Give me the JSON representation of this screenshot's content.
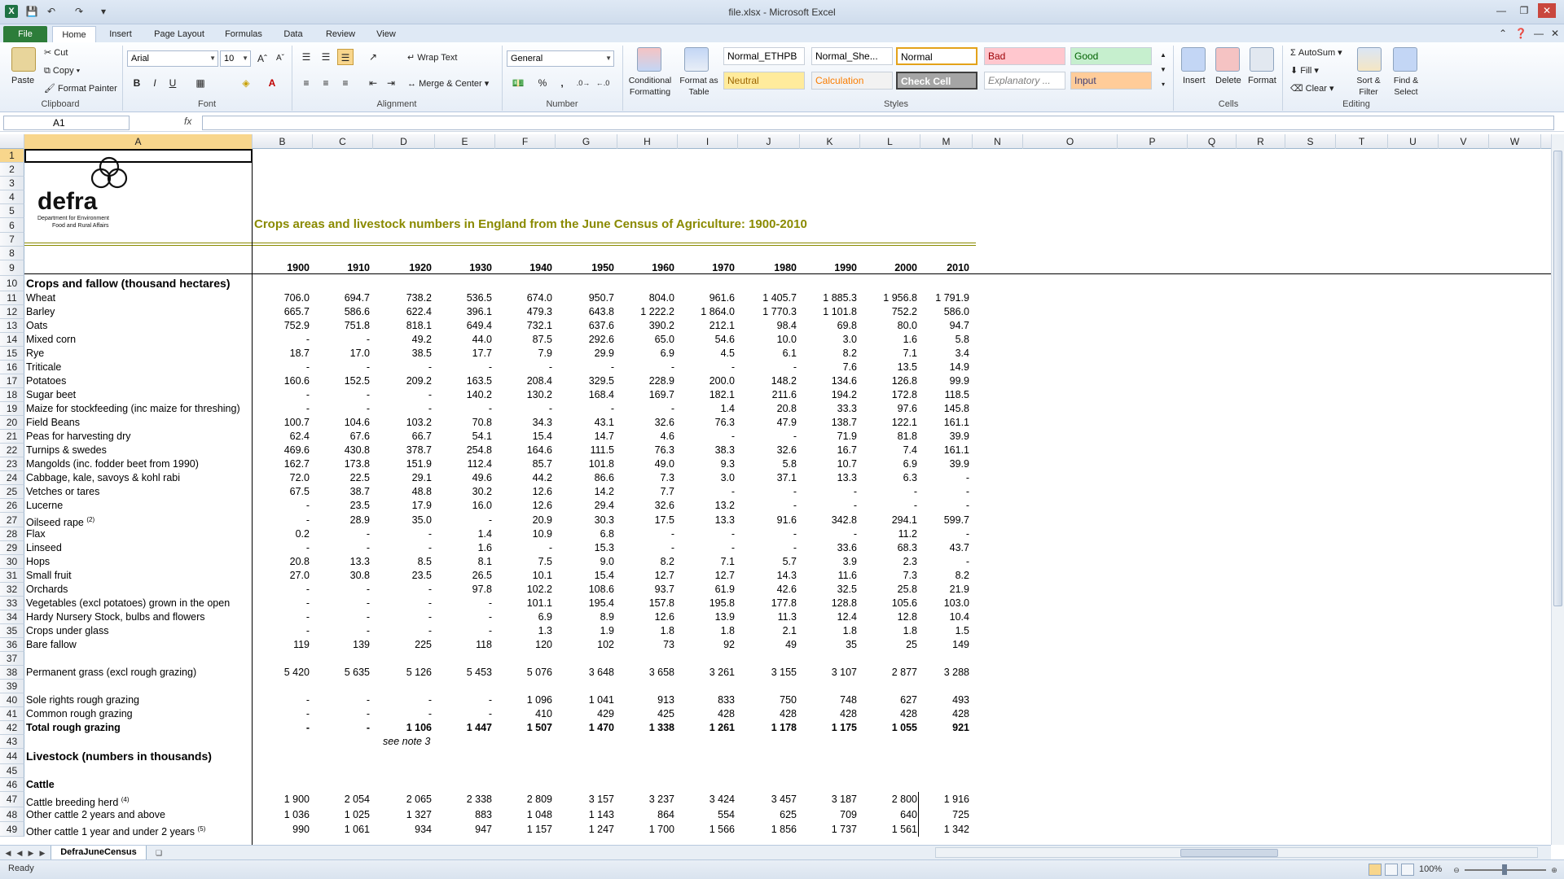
{
  "window": {
    "title": "file.xlsx  -  Microsoft Excel",
    "app_icon": "X"
  },
  "tabs": [
    "File",
    "Home",
    "Insert",
    "Page Layout",
    "Formulas",
    "Data",
    "Review",
    "View"
  ],
  "ribbon": {
    "clipboard": {
      "paste": "Paste",
      "cut": "Cut",
      "copy": "Copy",
      "format_painter": "Format Painter",
      "label": "Clipboard"
    },
    "font": {
      "name": "Arial",
      "size": "10",
      "bold": "B",
      "italic": "I",
      "underline": "U",
      "label": "Font"
    },
    "alignment": {
      "wrap": "Wrap Text",
      "merge": "Merge & Center",
      "label": "Alignment"
    },
    "number": {
      "format": "General",
      "percent": "%",
      "comma": ",",
      "label": "Number"
    },
    "styles_buttons": {
      "conditional": "Conditional Formatting",
      "format_table": "Format as Table"
    },
    "styles": [
      {
        "text": "Normal_ETHPB",
        "bg": "#ffffff",
        "color": "#000000"
      },
      {
        "text": "Normal_She...",
        "bg": "#ffffff",
        "color": "#000000"
      },
      {
        "text": "Normal",
        "bg": "#ffffff",
        "color": "#000000"
      },
      {
        "text": "Bad",
        "bg": "#ffc7ce",
        "color": "#9c0006"
      },
      {
        "text": "Good",
        "bg": "#c6efce",
        "color": "#006100"
      },
      {
        "text": "Neutral",
        "bg": "#ffeb9c",
        "color": "#9c6500"
      },
      {
        "text": "Calculation",
        "bg": "#f2f2f2",
        "color": "#fa7d00"
      },
      {
        "text": "Check Cell",
        "bg": "#a5a5a5",
        "color": "#ffffff"
      },
      {
        "text": "Explanatory ...",
        "bg": "#ffffff",
        "color": "#7f7f7f"
      },
      {
        "text": "Input",
        "bg": "#ffcc99",
        "color": "#3f3f76"
      }
    ],
    "styles_label": "Styles",
    "cells": {
      "insert": "Insert",
      "delete": "Delete",
      "format": "Format",
      "label": "Cells"
    },
    "editing": {
      "autosum": "AutoSum",
      "fill": "Fill",
      "clear": "Clear",
      "sort": "Sort & Filter",
      "find": "Find & Select",
      "label": "Editing"
    }
  },
  "formula_bar": {
    "name_box": "A1",
    "fx": "fx",
    "value": ""
  },
  "columns": [
    "A",
    "B",
    "C",
    "D",
    "E",
    "F",
    "G",
    "H",
    "I",
    "J",
    "K",
    "L",
    "M",
    "N",
    "O",
    "P",
    "Q",
    "R",
    "S",
    "T",
    "U",
    "V",
    "W"
  ],
  "rows": [
    "1",
    "2",
    "3",
    "4",
    "5",
    "6",
    "7",
    "8",
    "9",
    "10",
    "11",
    "12",
    "13",
    "14",
    "15",
    "16",
    "17",
    "18",
    "19",
    "20",
    "21",
    "22",
    "23",
    "24",
    "25",
    "26",
    "27",
    "28",
    "29",
    "30",
    "31",
    "32",
    "33",
    "34",
    "35",
    "36",
    "37",
    "38",
    "39",
    "40",
    "41",
    "42",
    "43",
    "44",
    "45",
    "46",
    "47",
    "48",
    "49"
  ],
  "logo": {
    "name": "defra",
    "line1": "Department for Environment",
    "line2": "Food and Rural Affairs"
  },
  "sheet": {
    "title": "Crops areas and livestock numbers in England from the June Census of Agriculture: 1900-2010",
    "years": [
      "1900",
      "1910",
      "1920",
      "1930",
      "1940",
      "1950",
      "1960",
      "1970",
      "1980",
      "1990",
      "2000",
      "2010"
    ],
    "crops_heading": "Crops and fallow (thousand hectares)",
    "crops": [
      {
        "row": 11,
        "label": "Wheat",
        "v": [
          "706.0",
          "694.7",
          "738.2",
          "536.5",
          "674.0",
          "950.7",
          "804.0",
          "961.6",
          "1 405.7",
          "1 885.3",
          "1 956.8",
          "1 791.9"
        ]
      },
      {
        "row": 12,
        "label": "Barley",
        "v": [
          "665.7",
          "586.6",
          "622.4",
          "396.1",
          "479.3",
          "643.8",
          "1 222.2",
          "1 864.0",
          "1 770.3",
          "1 101.8",
          "752.2",
          "586.0"
        ]
      },
      {
        "row": 13,
        "label": "Oats",
        "v": [
          "752.9",
          "751.8",
          "818.1",
          "649.4",
          "732.1",
          "637.6",
          "390.2",
          "212.1",
          "98.4",
          "69.8",
          "80.0",
          "94.7"
        ]
      },
      {
        "row": 14,
        "label": "Mixed corn",
        "v": [
          "-",
          "-",
          "49.2",
          "44.0",
          "87.5",
          "292.6",
          "65.0",
          "54.6",
          "10.0",
          "3.0",
          "1.6",
          "5.8"
        ]
      },
      {
        "row": 15,
        "label": "Rye",
        "v": [
          "18.7",
          "17.0",
          "38.5",
          "17.7",
          "7.9",
          "29.9",
          "6.9",
          "4.5",
          "6.1",
          "8.2",
          "7.1",
          "3.4"
        ]
      },
      {
        "row": 16,
        "label": "Triticale",
        "v": [
          "-",
          "-",
          "-",
          "-",
          "-",
          "-",
          "-",
          "-",
          "-",
          "7.6",
          "13.5",
          "14.9"
        ]
      },
      {
        "row": 17,
        "label": "Potatoes",
        "v": [
          "160.6",
          "152.5",
          "209.2",
          "163.5",
          "208.4",
          "329.5",
          "228.9",
          "200.0",
          "148.2",
          "134.6",
          "126.8",
          "99.9"
        ]
      },
      {
        "row": 18,
        "label": "Sugar beet",
        "v": [
          "-",
          "-",
          "-",
          "140.2",
          "130.2",
          "168.4",
          "169.7",
          "182.1",
          "211.6",
          "194.2",
          "172.8",
          "118.5"
        ]
      },
      {
        "row": 19,
        "label": "Maize for stockfeeding (inc maize for threshing)",
        "v": [
          "-",
          "-",
          "-",
          "-",
          "-",
          "-",
          "-",
          "1.4",
          "20.8",
          "33.3",
          "97.6",
          "145.8"
        ]
      },
      {
        "row": 20,
        "label": "Field Beans",
        "v": [
          "100.7",
          "104.6",
          "103.2",
          "70.8",
          "34.3",
          "43.1",
          "32.6",
          "76.3",
          "47.9",
          "138.7",
          "122.1",
          "161.1"
        ]
      },
      {
        "row": 21,
        "label": "Peas for harvesting dry",
        "v": [
          "62.4",
          "67.6",
          "66.7",
          "54.1",
          "15.4",
          "14.7",
          "4.6",
          "-",
          "-",
          "71.9",
          "81.8",
          "39.9"
        ]
      },
      {
        "row": 22,
        "label": "Turnips & swedes",
        "v": [
          "469.6",
          "430.8",
          "378.7",
          "254.8",
          "164.6",
          "111.5",
          "76.3",
          "38.3",
          "32.6",
          "16.7",
          "7.4",
          "161.1"
        ]
      },
      {
        "row": 23,
        "label": "Mangolds (inc. fodder beet from 1990)",
        "v": [
          "162.7",
          "173.8",
          "151.9",
          "112.4",
          "85.7",
          "101.8",
          "49.0",
          "9.3",
          "5.8",
          "10.7",
          "6.9",
          "39.9"
        ]
      },
      {
        "row": 24,
        "label": "Cabbage, kale, savoys & kohl rabi",
        "v": [
          "72.0",
          "22.5",
          "29.1",
          "49.6",
          "44.2",
          "86.6",
          "7.3",
          "3.0",
          "37.1",
          "13.3",
          "6.3",
          "-"
        ]
      },
      {
        "row": 25,
        "label": "Vetches or tares",
        "v": [
          "67.5",
          "38.7",
          "48.8",
          "30.2",
          "12.6",
          "14.2",
          "7.7",
          "-",
          "-",
          "-",
          "-",
          "-"
        ]
      },
      {
        "row": 26,
        "label": "Lucerne",
        "v": [
          "-",
          "23.5",
          "17.9",
          "16.0",
          "12.6",
          "29.4",
          "32.6",
          "13.2",
          "-",
          "-",
          "-",
          "-"
        ]
      },
      {
        "row": 27,
        "label": "Oilseed rape",
        "sup": "(2)",
        "v": [
          "-",
          "28.9",
          "35.0",
          "-",
          "20.9",
          "30.3",
          "17.5",
          "13.3",
          "91.6",
          "342.8",
          "294.1",
          "599.7"
        ]
      },
      {
        "row": 28,
        "label": "Flax",
        "v": [
          "0.2",
          "-",
          "-",
          "1.4",
          "10.9",
          "6.8",
          "-",
          "-",
          "-",
          "-",
          "11.2",
          "-"
        ]
      },
      {
        "row": 29,
        "label": "Linseed",
        "v": [
          "-",
          "-",
          "-",
          "1.6",
          "-",
          "15.3",
          "-",
          "-",
          "-",
          "33.6",
          "68.3",
          "43.7"
        ]
      },
      {
        "row": 30,
        "label": "Hops",
        "v": [
          "20.8",
          "13.3",
          "8.5",
          "8.1",
          "7.5",
          "9.0",
          "8.2",
          "7.1",
          "5.7",
          "3.9",
          "2.3",
          "-"
        ]
      },
      {
        "row": 31,
        "label": "Small fruit",
        "v": [
          "27.0",
          "30.8",
          "23.5",
          "26.5",
          "10.1",
          "15.4",
          "12.7",
          "12.7",
          "14.3",
          "11.6",
          "7.3",
          "8.2"
        ]
      },
      {
        "row": 32,
        "label": "Orchards",
        "v": [
          "-",
          "-",
          "-",
          "97.8",
          "102.2",
          "108.6",
          "93.7",
          "61.9",
          "42.6",
          "32.5",
          "25.8",
          "21.9"
        ]
      },
      {
        "row": 33,
        "label": "Vegetables (excl potatoes) grown in the open",
        "v": [
          "-",
          "-",
          "-",
          "-",
          "101.1",
          "195.4",
          "157.8",
          "195.8",
          "177.8",
          "128.8",
          "105.6",
          "103.0"
        ]
      },
      {
        "row": 34,
        "label": "Hardy Nursery Stock, bulbs and flowers",
        "v": [
          "-",
          "-",
          "-",
          "-",
          "6.9",
          "8.9",
          "12.6",
          "13.9",
          "11.3",
          "12.4",
          "12.8",
          "10.4"
        ]
      },
      {
        "row": 35,
        "label": "Crops under glass",
        "v": [
          "-",
          "-",
          "-",
          "-",
          "1.3",
          "1.9",
          "1.8",
          "1.8",
          "2.1",
          "1.8",
          "1.8",
          "1.5"
        ]
      },
      {
        "row": 36,
        "label": "Bare fallow",
        "v": [
          "119",
          "139",
          "225",
          "118",
          "120",
          "102",
          "73",
          "92",
          "49",
          "35",
          "25",
          "149"
        ]
      },
      {
        "row": 38,
        "label": "Permanent grass (excl rough grazing)",
        "v": [
          "5 420",
          "5 635",
          "5 126",
          "5 453",
          "5 076",
          "3 648",
          "3 658",
          "3 261",
          "3 155",
          "3 107",
          "2 877",
          "3 288"
        ]
      },
      {
        "row": 40,
        "label": "Sole rights rough grazing",
        "v": [
          "-",
          "-",
          "-",
          "-",
          "1 096",
          "1 041",
          "913",
          "833",
          "750",
          "748",
          "627",
          "493"
        ]
      },
      {
        "row": 41,
        "label": "Common rough grazing",
        "v": [
          "-",
          "-",
          "-",
          "-",
          "410",
          "429",
          "425",
          "428",
          "428",
          "428",
          "428",
          "428"
        ]
      },
      {
        "row": 42,
        "label": "Total rough grazing",
        "bold": true,
        "v": [
          "-",
          "-",
          "1 106",
          "1 447",
          "1 507",
          "1 470",
          "1 338",
          "1 261",
          "1 178",
          "1 175",
          "1 055",
          "921"
        ]
      }
    ],
    "note": "see note 3",
    "livestock_heading": "Livestock (numbers in thousands)",
    "cattle_heading": "Cattle",
    "livestock": [
      {
        "row": 47,
        "label": "Cattle breeding herd",
        "sup": "(4)",
        "v": [
          "1 900",
          "2 054",
          "2 065",
          "2 338",
          "2 809",
          "3 157",
          "3 237",
          "3 424",
          "3 457",
          "3 187",
          "2 800",
          "1 916"
        ]
      },
      {
        "row": 48,
        "label": "Other cattle 2 years and above",
        "v": [
          "1 036",
          "1 025",
          "1 327",
          "883",
          "1 048",
          "1 143",
          "864",
          "554",
          "625",
          "709",
          "640",
          "725"
        ]
      },
      {
        "row": 49,
        "label": "Other cattle 1 year and under 2 years",
        "sup": "(5)",
        "v": [
          "990",
          "1 061",
          "934",
          "947",
          "1 157",
          "1 247",
          "1 700",
          "1 566",
          "1 856",
          "1 737",
          "1 561",
          "1 342"
        ]
      }
    ]
  },
  "sheet_tab": "DefraJuneCensus",
  "status": {
    "text": "Ready",
    "zoom": "100%"
  }
}
